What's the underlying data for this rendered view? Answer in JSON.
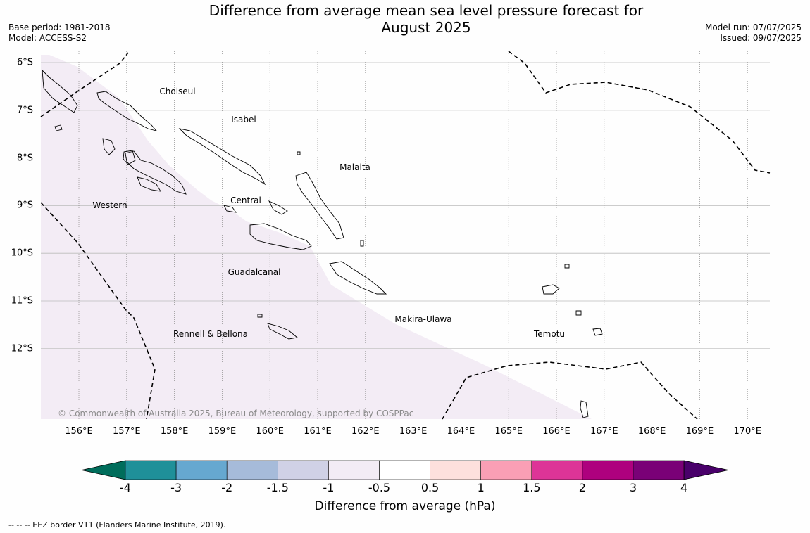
{
  "title_line1": "Difference from average mean sea level pressure forecast for",
  "title_line2": "August 2025",
  "base_period": "Base period: 1981-2018",
  "model": "Model: ACCESS-S2",
  "model_run": "Model run: 07/07/2025",
  "issued": "Issued: 09/07/2025",
  "lat_labels": [
    "6°S",
    "7°S",
    "8°S",
    "9°S",
    "10°S",
    "11°S",
    "12°S"
  ],
  "lon_labels": [
    "156°E",
    "157°E",
    "158°E",
    "159°E",
    "160°E",
    "161°E",
    "162°E",
    "163°E",
    "164°E",
    "165°E",
    "166°E",
    "167°E",
    "168°E",
    "169°E",
    "170°E"
  ],
  "regions": [
    "Choiseul",
    "Isabel",
    "Malaita",
    "Western",
    "Central",
    "Guadalcanal",
    "Makira-Ulawa",
    "Rennell & Bellona",
    "Temotu"
  ],
  "copyright": "© Commonwealth of Australia 2025, Bureau of Meteorology, supported by COSPPac",
  "colorbar": {
    "ticks": [
      "-4",
      "-3",
      "-2",
      "-1.5",
      "-1",
      "-0.5",
      "0.5",
      "1",
      "1.5",
      "2",
      "3",
      "4"
    ],
    "colors": [
      "#006d5b",
      "#1f9099",
      "#66a8d0",
      "#a6bbda",
      "#d0d1e6",
      "#f3ecf5",
      "#ffffff",
      "#fde0dd",
      "#fa9fb5",
      "#dd3497",
      "#ae017e",
      "#7a0177",
      "#49006a"
    ],
    "label": "Difference from average (hPa)"
  },
  "shaded_class": "-1 to -0.5",
  "shaded_color": "#f3ecf5",
  "footnote": "--  --  -- EEZ border V11 (Flanders Marine Institute, 2019)."
}
